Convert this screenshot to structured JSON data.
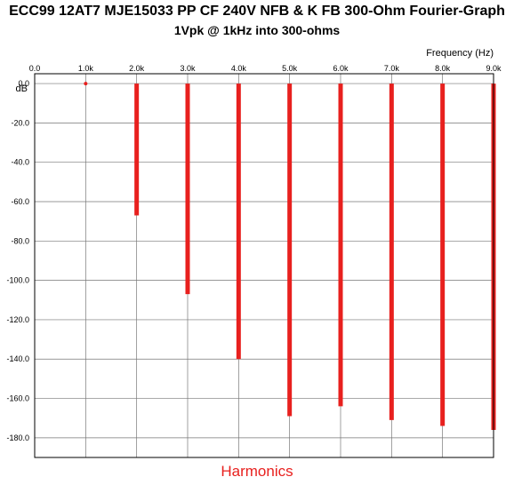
{
  "chart_data": {
    "type": "bar",
    "title": "ECC99 12AT7 MJE15033 PP CF 240V NFB & K FB 300-Ohm Fourier-Graph",
    "subtitle": "1Vpk @ 1kHz into 300-ohms",
    "xlabel": "Frequency  (Hz)",
    "ylabel": "dB",
    "bottom_label": "Harmonics",
    "xlim": [
      0,
      9000
    ],
    "ylim": [
      -190,
      5
    ],
    "x_ticks": [
      0,
      1000,
      2000,
      3000,
      4000,
      5000,
      6000,
      7000,
      8000,
      9000
    ],
    "x_tick_labels": [
      "0.0",
      "1.0k",
      "2.0k",
      "3.0k",
      "4.0k",
      "5.0k",
      "6.0k",
      "7.0k",
      "8.0k",
      "9.0k"
    ],
    "y_ticks": [
      0,
      -20,
      -40,
      -60,
      -80,
      -100,
      -120,
      -140,
      -160,
      -180
    ],
    "y_tick_labels": [
      "0.0",
      "-20.0",
      "-40.0",
      "-60.0",
      "-80.0",
      "-100.0",
      "-120.0",
      "-140.0",
      "-160.0",
      "-180.0"
    ],
    "grid": true,
    "bar_color": "#e8201e",
    "series": [
      {
        "x": [
          1000,
          2000,
          3000,
          4000,
          5000,
          6000,
          7000,
          8000,
          9000
        ],
        "values": [
          0,
          -67,
          -107,
          -140,
          -169,
          -164,
          -171,
          -174,
          -176
        ]
      }
    ]
  }
}
